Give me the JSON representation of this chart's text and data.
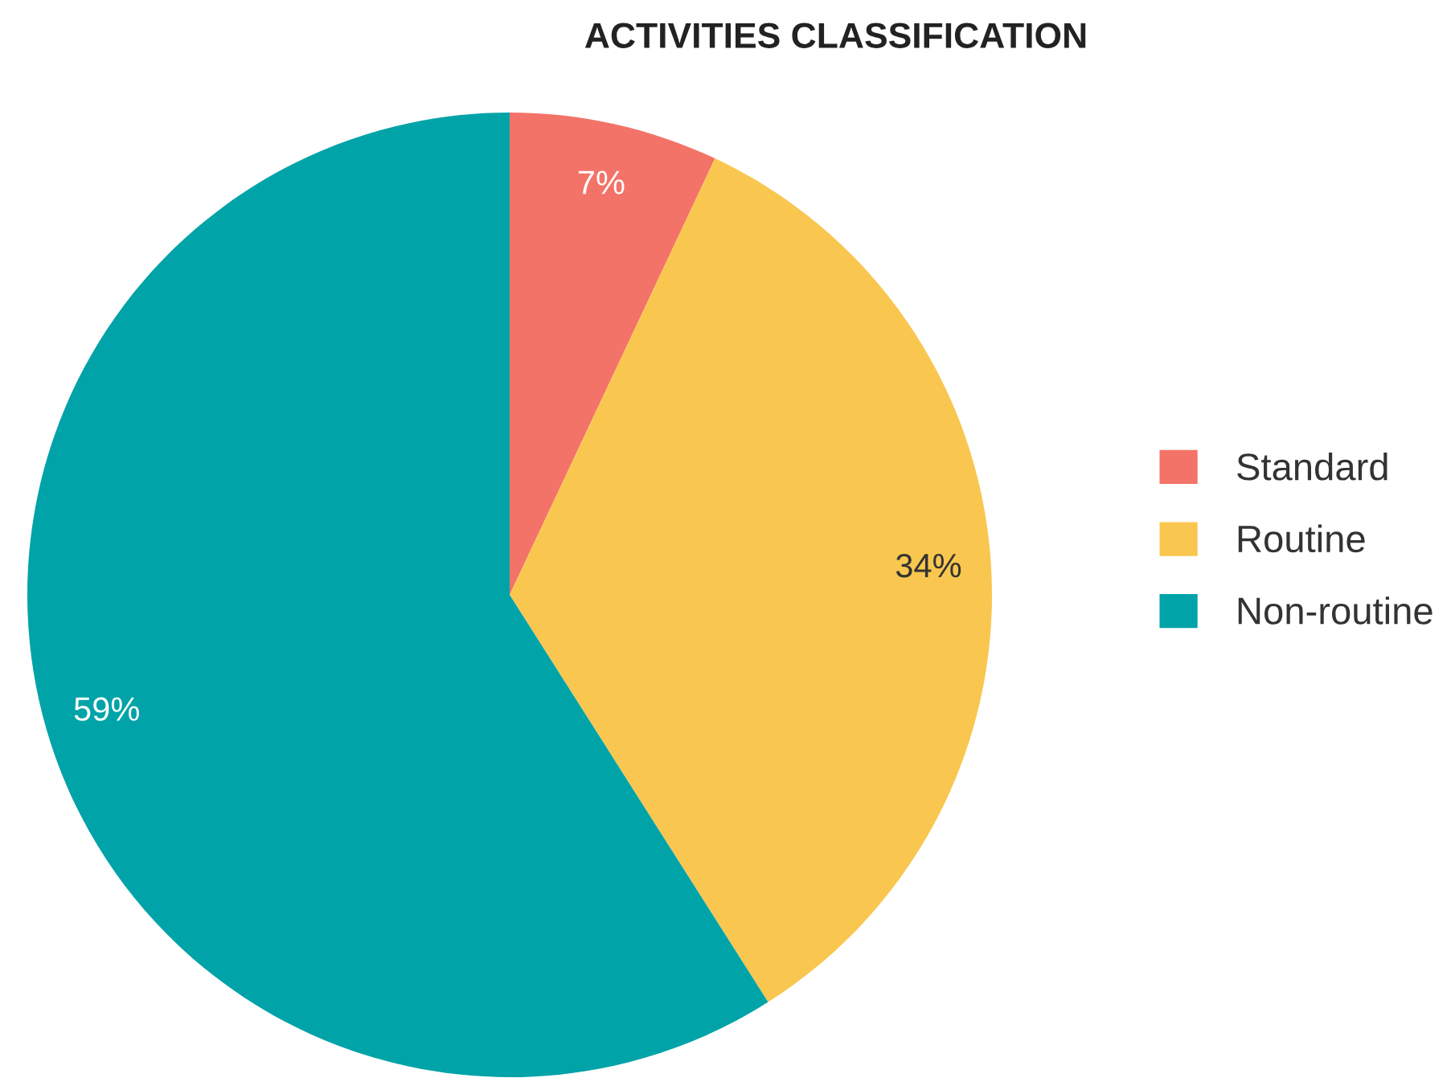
{
  "chart_data": {
    "type": "pie",
    "title": "ACTIVITIES CLASSIFICATION",
    "categories": [
      "Standard",
      "Routine",
      "Non-routine"
    ],
    "values": [
      7,
      34,
      59
    ],
    "colors": [
      "#f37368",
      "#f9c74f",
      "#00a3a8"
    ],
    "value_labels": [
      "7%",
      "34%",
      "59%"
    ],
    "legend": "right"
  }
}
